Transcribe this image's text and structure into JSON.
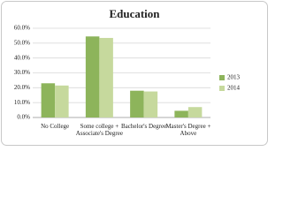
{
  "chart_data": {
    "type": "bar",
    "title": "Education",
    "categories": [
      "No College",
      "Some college + Associate's Degree",
      "Bachelor's Degree",
      "Master's Degree + Above"
    ],
    "series": [
      {
        "name": "2013",
        "color": "#8db45b",
        "values": [
          23,
          54.5,
          18,
          4.5
        ]
      },
      {
        "name": "2014",
        "color": "#c6d99d",
        "values": [
          21.5,
          53.5,
          17.5,
          7
        ]
      }
    ],
    "ylim": [
      0,
      60
    ],
    "yticks": [
      {
        "value": 0,
        "label": "0.0%"
      },
      {
        "value": 10,
        "label": "10.0%"
      },
      {
        "value": 20,
        "label": "20.0%"
      },
      {
        "value": 30,
        "label": "30.0%"
      },
      {
        "value": 40,
        "label": "40.0%"
      },
      {
        "value": 50,
        "label": "50.0%"
      },
      {
        "value": 60,
        "label": "60.0%"
      }
    ],
    "grid": true,
    "legend": "right"
  }
}
